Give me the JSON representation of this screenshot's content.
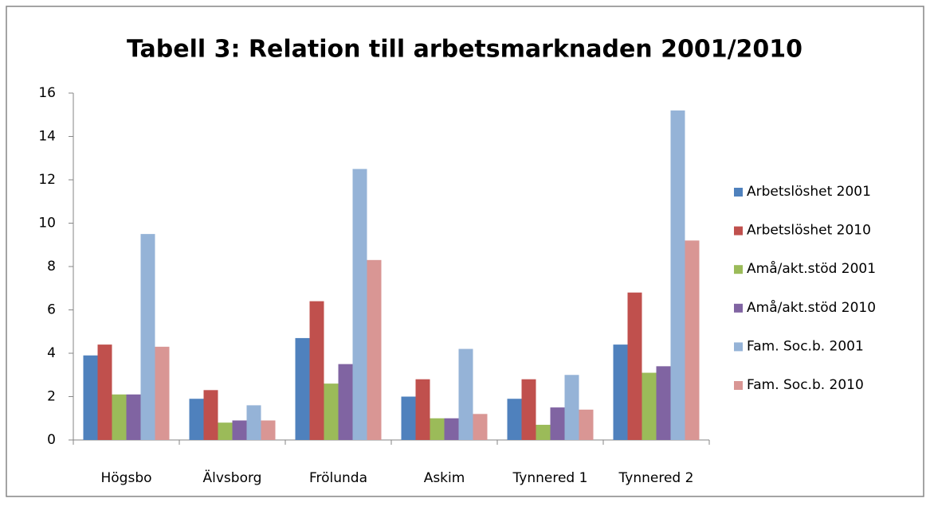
{
  "chart_data": {
    "type": "bar",
    "title": "Tabell 3: Relation till arbetsmarknaden 2001/2010",
    "categories": [
      "Högsbo",
      "Älvsborg",
      "Frölunda",
      "Askim",
      "Tynnered 1",
      "Tynnered 2"
    ],
    "series": [
      {
        "name": "Arbetslöshet 2001",
        "color": "#4f81bd",
        "values": [
          3.9,
          1.9,
          4.7,
          2.0,
          1.9,
          4.4
        ]
      },
      {
        "name": "Arbetslöshet 2010",
        "color": "#c0504d",
        "values": [
          4.4,
          2.3,
          6.4,
          2.8,
          2.8,
          6.8
        ]
      },
      {
        "name": "Amå/akt.stöd 2001",
        "color": "#9bbb59",
        "values": [
          2.1,
          0.8,
          2.6,
          1.0,
          0.7,
          3.1
        ]
      },
      {
        "name": "Amå/akt.stöd 2010",
        "color": "#8064a2",
        "values": [
          2.1,
          0.9,
          3.5,
          1.0,
          1.5,
          3.4
        ]
      },
      {
        "name": "Fam. Soc.b. 2001",
        "color": "#95b3d7",
        "values": [
          9.5,
          1.6,
          12.5,
          4.2,
          3.0,
          15.2
        ]
      },
      {
        "name": "Fam. Soc.b. 2010",
        "color": "#d99694",
        "values": [
          4.3,
          0.9,
          8.3,
          1.2,
          1.4,
          9.2
        ]
      }
    ],
    "ylim": [
      0,
      16
    ],
    "yticks": [
      0,
      2,
      4,
      6,
      8,
      10,
      12,
      14,
      16
    ],
    "grid": false,
    "legend": "right"
  }
}
